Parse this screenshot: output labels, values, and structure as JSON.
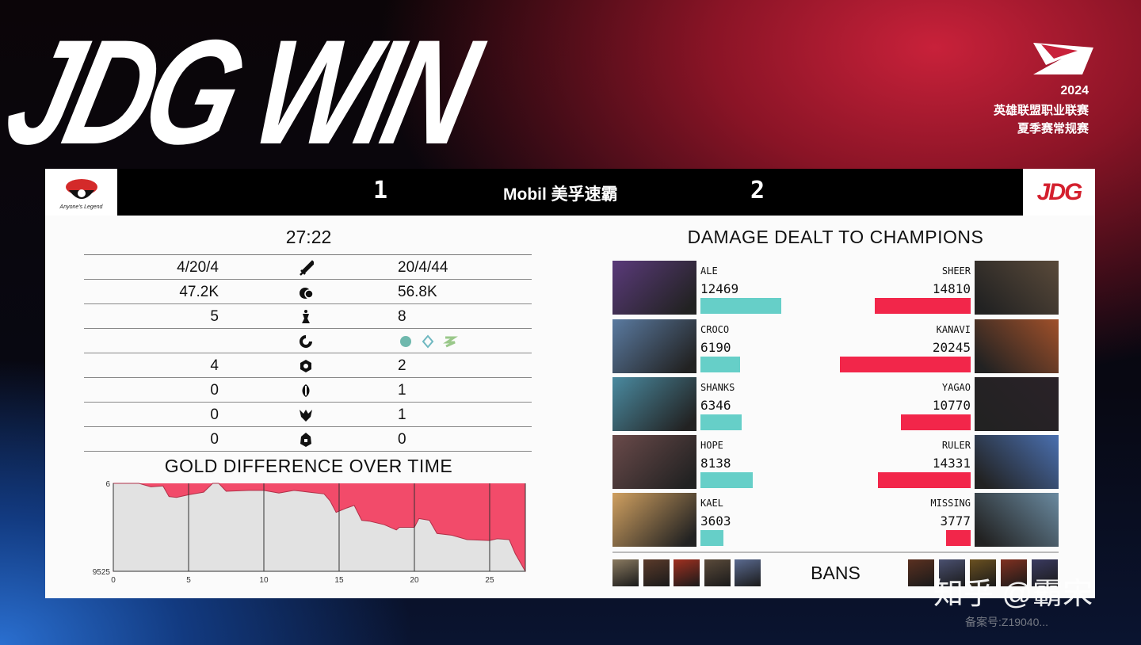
{
  "headline": "JDG WIN",
  "league": {
    "year": "2024",
    "line1": "英雄联盟职业联赛",
    "line2": "夏季赛常规赛"
  },
  "scoreboard": {
    "left_team_logo_text": "Anyone's Legend",
    "left_score": "1",
    "sponsor": "Mobil 美孚速霸",
    "right_team_logo_text": "JDG",
    "right_score": "2"
  },
  "game_time": "27:22",
  "stats": [
    {
      "icon": "sword-icon",
      "left": "4/20/4",
      "right": "20/4/44"
    },
    {
      "icon": "gold-icon",
      "left": "47.2K",
      "right": "56.8K"
    },
    {
      "icon": "tower-icon",
      "left": "5",
      "right": "8"
    },
    {
      "icon": "dragon-icon",
      "left": "",
      "right": "",
      "right_icons": [
        "ocean-drake-icon",
        "hextech-drake-icon",
        "chemtech-drake-icon"
      ]
    },
    {
      "icon": "grub-icon",
      "left": "4",
      "right": "2"
    },
    {
      "icon": "herald-icon",
      "left": "0",
      "right": "1"
    },
    {
      "icon": "baron-icon",
      "left": "0",
      "right": "1"
    },
    {
      "icon": "elder-icon",
      "left": "0",
      "right": "0"
    }
  ],
  "gold_chart": {
    "title": "GOLD DIFFERENCE OVER TIME",
    "chart_data": {
      "type": "area",
      "x_ticks": [
        "0",
        "5",
        "10",
        "15",
        "20",
        "25"
      ],
      "y_ticks": [
        "6",
        "9525"
      ],
      "ylim": [
        6,
        9525
      ],
      "xlim": [
        0,
        27.37
      ],
      "y_inverted": true,
      "x": [
        0,
        1.7,
        2.5,
        3.3,
        3.7,
        4.2,
        5,
        6,
        6.6,
        7,
        7.5,
        9,
        10,
        11,
        12,
        13,
        14,
        14.4,
        14.8,
        15.5,
        16,
        16.5,
        17,
        18,
        18.8,
        19,
        20,
        20.3,
        21,
        21.5,
        22.5,
        23.5,
        25,
        25.5,
        26.3,
        26.7,
        27.37
      ],
      "y": [
        6,
        6,
        387,
        292,
        1434,
        1529,
        1243,
        958,
        6,
        6,
        863,
        768,
        768,
        1053,
        768,
        958,
        1148,
        1910,
        3147,
        2671,
        2386,
        4004,
        4099,
        4480,
        5051,
        4766,
        4766,
        3814,
        4004,
        5432,
        5622,
        6098,
        6193,
        6003,
        6098,
        7621,
        9525
      ],
      "fill_color": "#f24b6a",
      "background": "#e2e2e2",
      "grid": true
    }
  },
  "damage": {
    "title": "DAMAGE DEALT TO CHAMPIONS",
    "left_color": "#66cfc8",
    "right_color": "#f2264a",
    "rows": [
      {
        "left_name": "ALE",
        "left_dmg": "12469",
        "right_name": "SHEER",
        "right_dmg": "14810",
        "lc": "#5a3a7a",
        "rc": "#5a4a3a"
      },
      {
        "left_name": "CROCO",
        "left_dmg": "6190",
        "right_name": "KANAVI",
        "right_dmg": "20245",
        "lc": "#5a7aa0",
        "rc": "#a0502a"
      },
      {
        "left_name": "SHANKS",
        "left_dmg": "6346",
        "right_name": "YAGAO",
        "right_dmg": "10770",
        "lc": "#4a8aa0",
        "rc": "#2a2228"
      },
      {
        "left_name": "HOPE",
        "left_dmg": "8138",
        "right_name": "RULER",
        "right_dmg": "14331",
        "lc": "#6a4a4a",
        "rc": "#4a70b0"
      },
      {
        "left_name": "KAEL",
        "left_dmg": "3603",
        "right_name": "MISSING",
        "right_dmg": "3777",
        "lc": "#d0a060",
        "rc": "#6a8aa0"
      }
    ]
  },
  "bans": {
    "label": "BANS",
    "left_colors": [
      "#8a7a60",
      "#5a3a2a",
      "#a03020",
      "#5a4a3a",
      "#5a6a90"
    ],
    "right_colors": [
      "#5a3020",
      "#4a5070",
      "#6a5020",
      "#803020",
      "#3a3a60"
    ]
  },
  "watermark": "知乎 @霸宋",
  "watermark_sub": "备案号:Z19040..."
}
